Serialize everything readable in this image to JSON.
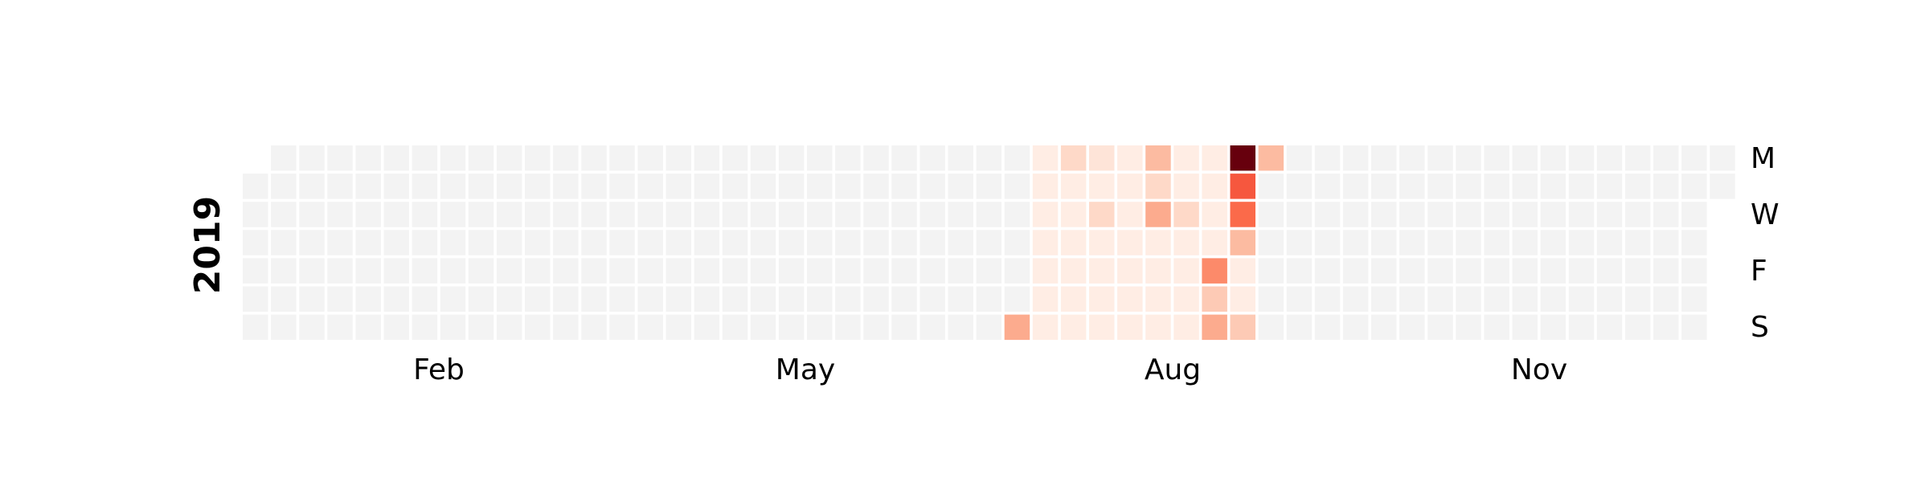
{
  "chart_data": {
    "type": "heatmap",
    "title": "",
    "year": "2019",
    "first_weekday_of_year": "Tue",
    "day_labels": [
      "M",
      "W",
      "F",
      "S"
    ],
    "month_labels": [
      "Feb",
      "May",
      "Aug",
      "Nov"
    ],
    "colormap": "Reds",
    "empty_color": "#f3f3f3",
    "grid": false,
    "legend": "none",
    "value_range": [
      0,
      1
    ],
    "values_by_week": {
      "27": [
        0,
        0,
        0,
        0,
        0,
        0,
        0.3
      ],
      "28": [
        0.05,
        0.05,
        0.05,
        0.05,
        0.05,
        0.05,
        0.05
      ],
      "29": [
        0.15,
        0.05,
        0.05,
        0.05,
        0.05,
        0.05,
        0.05
      ],
      "30": [
        0.1,
        0.05,
        0.15,
        0.05,
        0.05,
        0.05,
        0.05
      ],
      "31": [
        0.05,
        0.05,
        0.05,
        0.05,
        0.05,
        0.05,
        0.05
      ],
      "32": [
        0.25,
        0.15,
        0.3,
        0.05,
        0.05,
        0.05,
        0.05
      ],
      "33": [
        0.05,
        0.05,
        0.15,
        0.05,
        0.05,
        0.05,
        0.05
      ],
      "34": [
        0.05,
        0.05,
        0.05,
        0.05,
        0.4,
        0.2,
        0.3
      ],
      "35": [
        1.0,
        0.55,
        0.5,
        0.25,
        0.05,
        0.05,
        0.2
      ],
      "36": [
        0.25,
        0,
        0,
        0,
        0,
        0,
        0
      ]
    }
  }
}
